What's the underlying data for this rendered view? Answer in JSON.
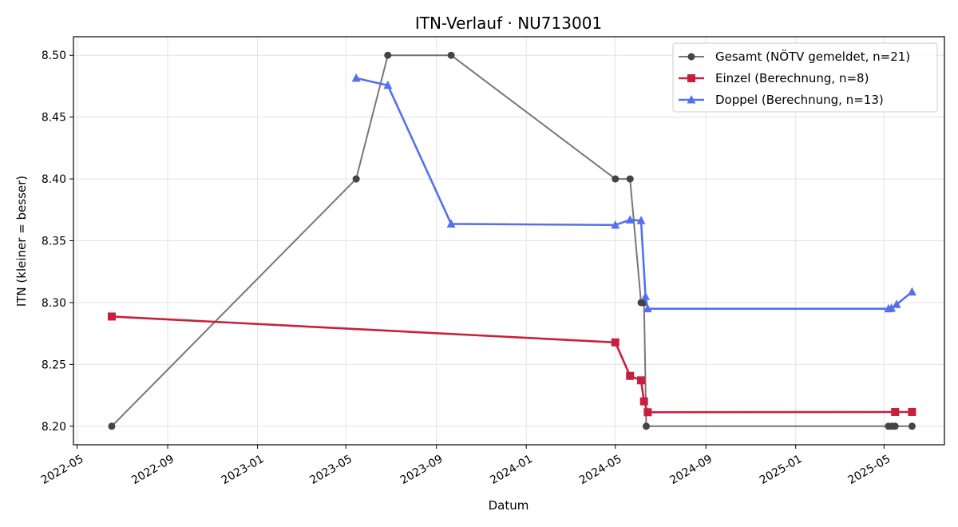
{
  "chart_data": {
    "type": "line",
    "title": "ITN-Verlauf · NU713001",
    "xlabel": "Datum",
    "ylabel": "ITN  (kleiner = besser)",
    "x_is_date": true,
    "xlim": [
      "2022-04-26",
      "2025-07-22"
    ],
    "ylim": [
      8.185,
      8.515
    ],
    "x_ticks": [
      "2022-05-01",
      "2022-09-01",
      "2023-01-01",
      "2023-05-01",
      "2023-09-01",
      "2024-01-01",
      "2024-05-01",
      "2024-09-01",
      "2025-01-01",
      "2025-05-01"
    ],
    "x_tick_labels": [
      "2022-05",
      "2022-09",
      "2023-01",
      "2023-05",
      "2023-09",
      "2024-01",
      "2024-05",
      "2024-09",
      "2025-01",
      "2025-05"
    ],
    "y_ticks": [
      8.2,
      8.25,
      8.3,
      8.35,
      8.4,
      8.45,
      8.5
    ],
    "y_tick_labels": [
      "8.20",
      "8.25",
      "8.30",
      "8.35",
      "8.40",
      "8.45",
      "8.50"
    ],
    "grid": true,
    "legend_position": "top-right",
    "series": [
      {
        "name": "Gesamt (NÖTV gemeldet, n=21)",
        "color": "#555555",
        "marker": "circle",
        "points": [
          {
            "x": "2022-06-17",
            "y": 8.2
          },
          {
            "x": "2023-05-15",
            "y": 8.4
          },
          {
            "x": "2023-06-27",
            "y": 8.5
          },
          {
            "x": "2023-09-21",
            "y": 8.5
          },
          {
            "x": "2024-05-01",
            "y": 8.4
          },
          {
            "x": "2024-05-21",
            "y": 8.4
          },
          {
            "x": "2024-06-05",
            "y": 8.3
          },
          {
            "x": "2024-06-07",
            "y": 8.3
          },
          {
            "x": "2024-06-09",
            "y": 8.3
          },
          {
            "x": "2024-06-12",
            "y": 8.2
          },
          {
            "x": "2025-05-07",
            "y": 8.2
          },
          {
            "x": "2025-05-12",
            "y": 8.2
          },
          {
            "x": "2025-05-16",
            "y": 8.2
          },
          {
            "x": "2025-06-08",
            "y": 8.2
          }
        ]
      },
      {
        "name": "Einzel (Berechnung, n=8)",
        "color": "#c8203c",
        "marker": "square",
        "points": [
          {
            "x": "2022-06-17",
            "y": 8.2887
          },
          {
            "x": "2024-05-01",
            "y": 8.2678
          },
          {
            "x": "2024-05-21",
            "y": 8.2407
          },
          {
            "x": "2024-06-05",
            "y": 8.2371
          },
          {
            "x": "2024-06-09",
            "y": 8.2201
          },
          {
            "x": "2024-06-14",
            "y": 8.2113
          },
          {
            "x": "2025-05-16",
            "y": 8.2115
          },
          {
            "x": "2025-06-08",
            "y": 8.2115
          }
        ]
      },
      {
        "name": "Doppel (Berechnung, n=13)",
        "color": "#5470ee",
        "marker": "triangle",
        "points": [
          {
            "x": "2023-05-15",
            "y": 8.4815
          },
          {
            "x": "2023-06-27",
            "y": 8.4757
          },
          {
            "x": "2023-09-21",
            "y": 8.3636
          },
          {
            "x": "2024-05-01",
            "y": 8.3627
          },
          {
            "x": "2024-05-21",
            "y": 8.3669
          },
          {
            "x": "2024-06-05",
            "y": 8.3663
          },
          {
            "x": "2024-06-11",
            "y": 8.3049
          },
          {
            "x": "2024-06-14",
            "y": 8.295
          },
          {
            "x": "2025-05-07",
            "y": 8.295
          },
          {
            "x": "2025-05-11",
            "y": 8.2954
          },
          {
            "x": "2025-05-18",
            "y": 8.2985
          },
          {
            "x": "2025-06-08",
            "y": 8.3086
          }
        ]
      }
    ]
  }
}
